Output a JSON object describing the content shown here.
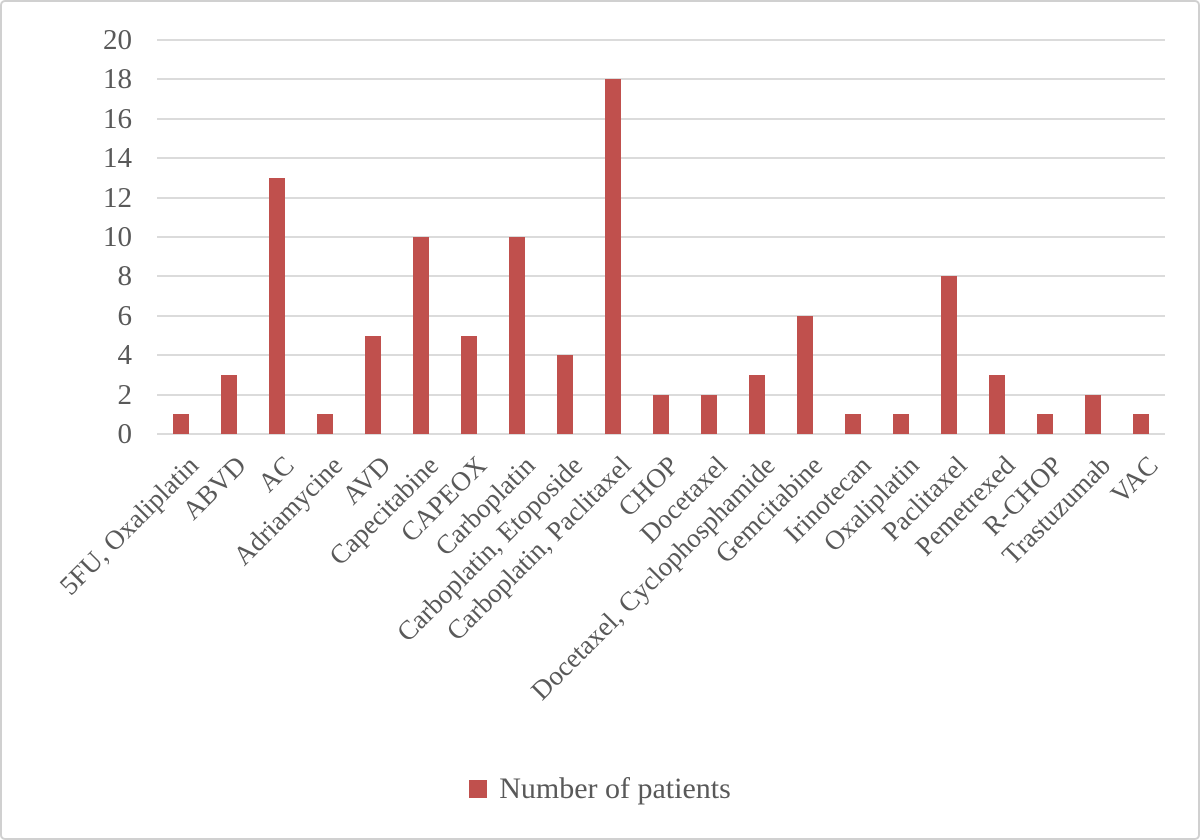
{
  "chart_data": {
    "type": "bar",
    "categories": [
      "5FU, Oxaliplatin",
      "ABVD",
      "AC",
      "Adriamycine",
      "AVD",
      "Capecitabine",
      "CAPEOX",
      "Carboplatin",
      "Carboplatin, Etoposide",
      "Carboplatin, Paclitaxel",
      "CHOP",
      "Docetaxel",
      "Docetaxel, Cyclophosphamide",
      "Gemcitabine",
      "Irinotecan",
      "Oxaliplatin",
      "Paclitaxel",
      "Pemetrexed",
      "R-CHOP",
      "Trastuzumab",
      "VAC"
    ],
    "values": [
      1,
      3,
      13,
      1,
      5,
      10,
      5,
      10,
      4,
      18,
      2,
      2,
      3,
      6,
      1,
      1,
      8,
      3,
      1,
      2,
      1
    ],
    "title": "",
    "xlabel": "",
    "ylabel": "",
    "ylim": [
      0,
      20
    ],
    "yticks": [
      0,
      2,
      4,
      6,
      8,
      10,
      12,
      14,
      16,
      18,
      20
    ],
    "grid": true,
    "legend_position": "bottom",
    "series": [
      {
        "name": "Number of patients",
        "values": [
          1,
          3,
          13,
          1,
          5,
          10,
          5,
          10,
          4,
          18,
          2,
          2,
          3,
          6,
          1,
          1,
          8,
          3,
          1,
          2,
          1
        ]
      }
    ]
  },
  "legend": {
    "label": "Number of patients"
  },
  "colors": {
    "bar": "#C0504D",
    "gridline": "#DBDBDB",
    "text": "#595959"
  }
}
